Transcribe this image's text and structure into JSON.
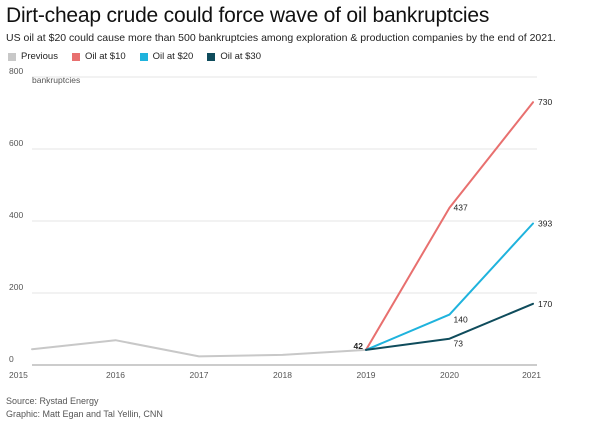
{
  "header": {
    "title": "Dirt-cheap crude could force wave of oil bankruptcies",
    "subtitle": "US oil at $20 could cause more than 500 bankruptcies among exploration & production companies by the end of 2021."
  },
  "footer": {
    "source": "Source: Rystad Energy",
    "credit": "Graphic: Matt Egan and Tal Yellin, CNN"
  },
  "chart_data": {
    "type": "line",
    "title": "Dirt-cheap crude could force wave of oil bankruptcies",
    "subtitle": "US oil at $20 could cause more than 500 bankruptcies among exploration & production companies by the end of 2021.",
    "ylabel": "bankruptcies",
    "xlabel": "",
    "x": [
      "2015",
      "2016",
      "2017",
      "2018",
      "2019",
      "2020",
      "2021"
    ],
    "ylim": [
      0,
      800
    ],
    "yticks": [
      0,
      200,
      400,
      600,
      800
    ],
    "grid": true,
    "legend_position": "top-left",
    "series": [
      {
        "name": "Previous",
        "color": "#c8c8c8",
        "points": [
          [
            "2015",
            44
          ],
          [
            "2016",
            69
          ],
          [
            "2017",
            24
          ],
          [
            "2018",
            28
          ],
          [
            "2019",
            42
          ]
        ]
      },
      {
        "name": "Oil at $10",
        "color": "#e8706f",
        "points": [
          [
            "2019",
            42
          ],
          [
            "2020",
            437
          ],
          [
            "2021",
            730
          ]
        ]
      },
      {
        "name": "Oil at $20",
        "color": "#1fb3dd",
        "points": [
          [
            "2019",
            42
          ],
          [
            "2020",
            140
          ],
          [
            "2021",
            393
          ]
        ]
      },
      {
        "name": "Oil at $30",
        "color": "#0f4c5c",
        "points": [
          [
            "2019",
            42
          ],
          [
            "2020",
            73
          ],
          [
            "2021",
            170
          ]
        ]
      }
    ],
    "annotations": [
      {
        "x": "2019",
        "y": 42,
        "text": "42",
        "bold": true
      },
      {
        "x": "2020",
        "y": 437,
        "text": "437"
      },
      {
        "x": "2021",
        "y": 730,
        "text": "730"
      },
      {
        "x": "2020",
        "y": 140,
        "text": "140"
      },
      {
        "x": "2021",
        "y": 393,
        "text": "393"
      },
      {
        "x": "2020",
        "y": 73,
        "text": "73"
      },
      {
        "x": "2021",
        "y": 170,
        "text": "170"
      }
    ]
  }
}
